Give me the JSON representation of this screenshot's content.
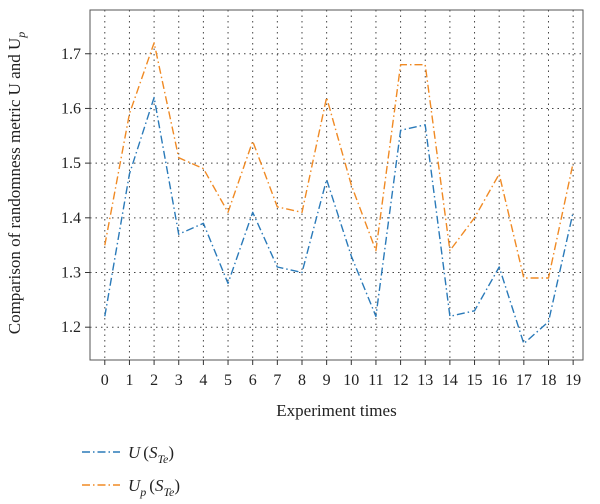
{
  "chart_data": {
    "type": "line",
    "title": "",
    "xlabel": "Experiment times",
    "ylabel": "Comparison of randomness metric U and U_p",
    "ylabel_parts": {
      "prefix": "Comparison of randomness metric U and U",
      "subscript": "p"
    },
    "x": [
      0,
      1,
      2,
      3,
      4,
      5,
      6,
      7,
      8,
      9,
      10,
      11,
      12,
      13,
      14,
      15,
      16,
      17,
      18,
      19
    ],
    "xlim": [
      -0.6,
      19.4
    ],
    "ylim": [
      1.14,
      1.78
    ],
    "yticks": [
      1.2,
      1.3,
      1.4,
      1.5,
      1.6,
      1.7
    ],
    "ytick_labels": [
      "1.2",
      "1.3",
      "1.4",
      "1.5",
      "1.6",
      "1.7"
    ],
    "grid": true,
    "legend_position": "below-left",
    "series": [
      {
        "name": "U (S_Te)",
        "label_parts": {
          "main": "U",
          "sub": "",
          "arg": "S",
          "arg_sub": "Te"
        },
        "color": "#2a7ab9",
        "line_style": "dash-dot",
        "values": [
          1.22,
          1.48,
          1.62,
          1.37,
          1.39,
          1.28,
          1.41,
          1.31,
          1.3,
          1.47,
          1.33,
          1.22,
          1.56,
          1.57,
          1.22,
          1.23,
          1.31,
          1.17,
          1.21,
          1.41
        ]
      },
      {
        "name": "U_p (S_Te)",
        "label_parts": {
          "main": "U",
          "sub": "p",
          "arg": "S",
          "arg_sub": "Te"
        },
        "color": "#f08a24",
        "line_style": "dash-dot",
        "values": [
          1.35,
          1.59,
          1.72,
          1.51,
          1.49,
          1.41,
          1.54,
          1.42,
          1.41,
          1.62,
          1.46,
          1.34,
          1.68,
          1.68,
          1.34,
          1.4,
          1.48,
          1.29,
          1.29,
          1.5
        ]
      }
    ]
  }
}
